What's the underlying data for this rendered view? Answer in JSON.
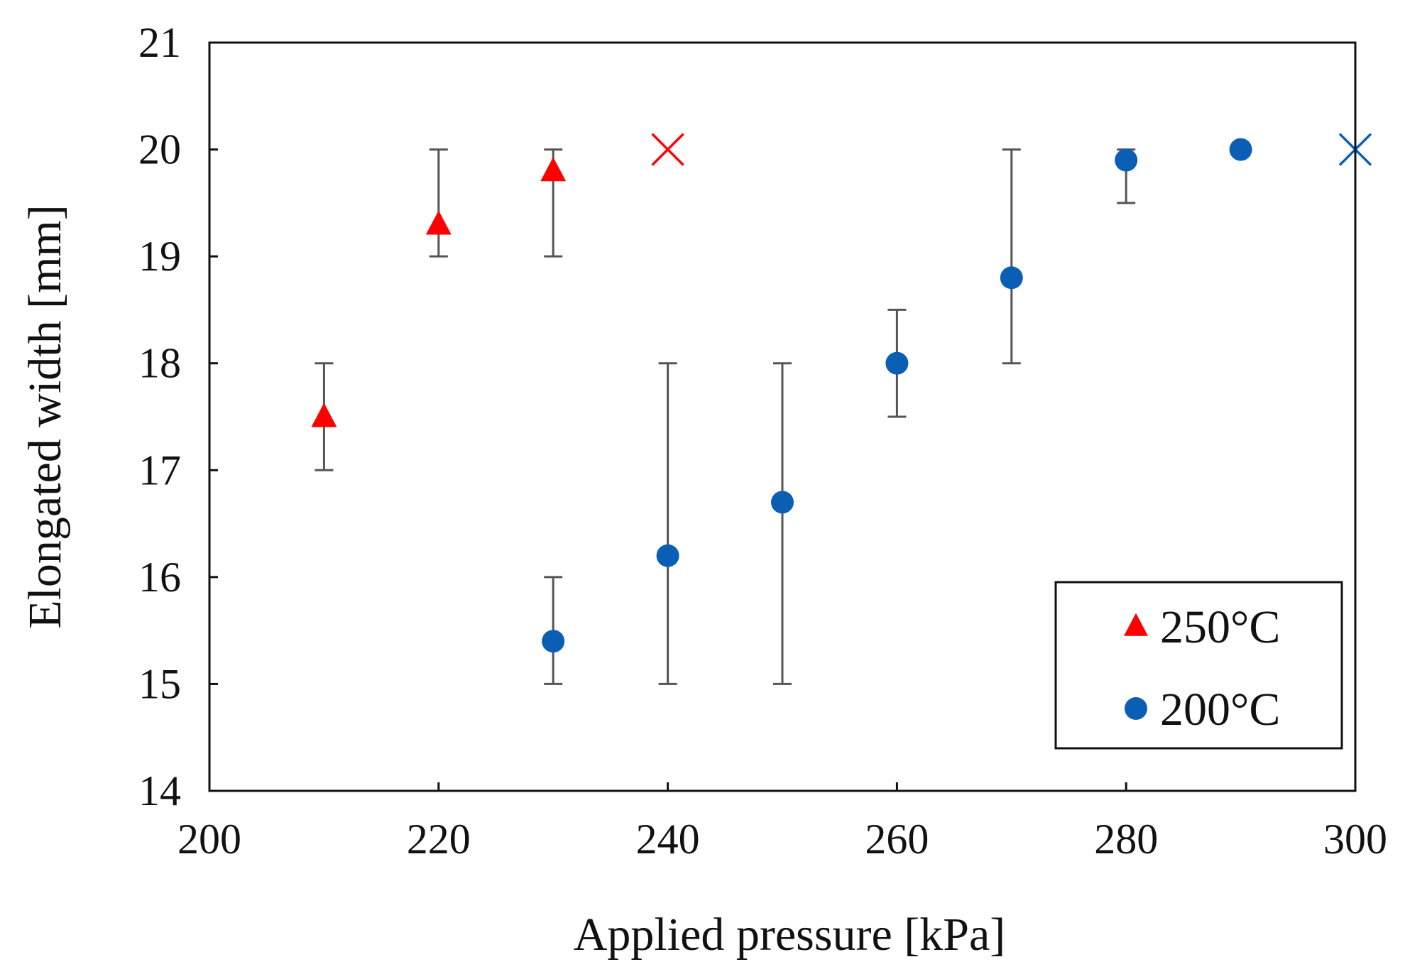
{
  "chart_data": {
    "type": "scatter",
    "xlabel": "Applied pressure [kPa]",
    "ylabel": "Elongated width [mm]",
    "xlim": [
      200,
      300
    ],
    "ylim": [
      14,
      21
    ],
    "xticks": [
      200,
      220,
      240,
      260,
      280,
      300
    ],
    "yticks": [
      14,
      15,
      16,
      17,
      18,
      19,
      20,
      21
    ],
    "grid": false,
    "legend_position": "bottom-right",
    "series": [
      {
        "name": "250°C",
        "marker": "triangle",
        "color": "#ff0000",
        "points": [
          {
            "x": 210,
            "y": 17.5,
            "err_low": 17.0,
            "err_high": 18.0
          },
          {
            "x": 220,
            "y": 19.3,
            "err_low": 19.0,
            "err_high": 20.0
          },
          {
            "x": 230,
            "y": 19.8,
            "err_low": 19.0,
            "err_high": 20.0
          }
        ],
        "cross_points": [
          {
            "x": 240,
            "y": 20
          }
        ]
      },
      {
        "name": "200°C",
        "marker": "circle",
        "color": "#0a5fb4",
        "points": [
          {
            "x": 230,
            "y": 15.4,
            "err_low": 15.0,
            "err_high": 16.0
          },
          {
            "x": 240,
            "y": 16.2,
            "err_low": 15.0,
            "err_high": 18.0
          },
          {
            "x": 250,
            "y": 16.7,
            "err_low": 15.0,
            "err_high": 18.0
          },
          {
            "x": 260,
            "y": 18.0,
            "err_low": 17.5,
            "err_high": 18.5
          },
          {
            "x": 270,
            "y": 18.8,
            "err_low": 18.0,
            "err_high": 20.0
          },
          {
            "x": 280,
            "y": 19.9,
            "err_low": 19.5,
            "err_high": 20.0
          },
          {
            "x": 290,
            "y": 20.0,
            "err_low": null,
            "err_high": null
          }
        ],
        "cross_points": [
          {
            "x": 300,
            "y": 20
          }
        ]
      }
    ],
    "errorbar_color": "#555555"
  }
}
